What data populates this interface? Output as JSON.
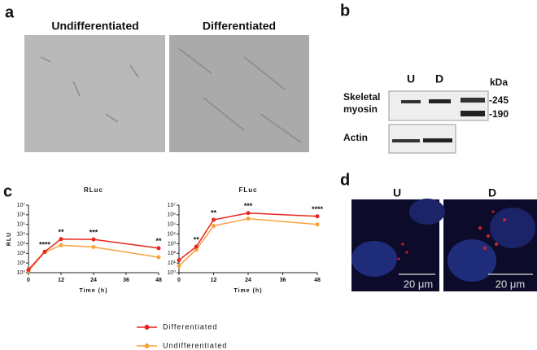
{
  "panel_labels": [
    "a",
    "b",
    "c",
    "d"
  ],
  "panel_a": {
    "titles": [
      "Undifferentiated",
      "Differentiated"
    ]
  },
  "panel_b": {
    "lanes": [
      "U",
      "D"
    ],
    "unit": "kDa",
    "markers": [
      "-245",
      "-190"
    ],
    "blot_labels": [
      [
        "Skeletal",
        "myosin"
      ],
      [
        "Actin"
      ]
    ]
  },
  "panel_d": {
    "labels": [
      "U",
      "D"
    ],
    "scale_bars": [
      "20 μm",
      "20 μm"
    ]
  },
  "legend": [
    {
      "name": "Differentiated",
      "color": "#e8251f"
    },
    {
      "name": "Undifferentiated",
      "color": "#f7a23c"
    }
  ],
  "chart_data": [
    {
      "type": "line",
      "title": "RLuc",
      "xlabel": "Time (h)",
      "ylabel": "RLU",
      "log": true,
      "x": [
        0,
        6,
        12,
        24,
        48
      ],
      "xlim": [
        0,
        48
      ],
      "xticks": [
        0,
        12,
        24,
        36,
        48
      ],
      "ylim": [
        1,
        10000000
      ],
      "yticks": [
        {
          "value": 1,
          "label": "10⁰"
        },
        {
          "value": 10,
          "label": "10¹"
        },
        {
          "value": 100,
          "label": "10²"
        },
        {
          "value": 1000,
          "label": "10³"
        },
        {
          "value": 10000,
          "label": "10⁴"
        },
        {
          "value": 100000,
          "label": "10⁵"
        },
        {
          "value": 1000000,
          "label": "10⁶"
        },
        {
          "value": 10000000,
          "label": "10⁷"
        }
      ],
      "series": [
        {
          "values": [
            2,
            150,
            3000,
            2800,
            350
          ]
        },
        {
          "values": [
            1.5,
            130,
            700,
            450,
            40
          ]
        }
      ],
      "annotations": [
        {
          "x": 6,
          "text": "****"
        },
        {
          "x": 12,
          "text": "**"
        },
        {
          "x": 24,
          "text": "***"
        },
        {
          "x": 48,
          "text": "**"
        }
      ]
    },
    {
      "type": "line",
      "title": "FLuc",
      "xlabel": "Time (h)",
      "log": true,
      "x": [
        0,
        6,
        12,
        24,
        48
      ],
      "xlim": [
        0,
        48
      ],
      "xticks": [
        0,
        12,
        24,
        36,
        48
      ],
      "ylim": [
        1,
        10000000
      ],
      "yticks": [
        {
          "value": 1,
          "label": "10⁰"
        },
        {
          "value": 10,
          "label": "10¹"
        },
        {
          "value": 100,
          "label": "10²"
        },
        {
          "value": 1000,
          "label": "10³"
        },
        {
          "value": 10000,
          "label": "10⁴"
        },
        {
          "value": 100000,
          "label": "10⁵"
        },
        {
          "value": 1000000,
          "label": "10⁶"
        },
        {
          "value": 10000000,
          "label": "10⁷"
        }
      ],
      "series": [
        {
          "values": [
            20,
            500,
            300000,
            1500000,
            700000
          ]
        },
        {
          "values": [
            5,
            250,
            70000,
            400000,
            100000
          ]
        }
      ],
      "annotations": [
        {
          "x": 6,
          "text": "**"
        },
        {
          "x": 12,
          "text": "**"
        },
        {
          "x": 24,
          "text": "***"
        },
        {
          "x": 48,
          "text": "****"
        }
      ]
    }
  ]
}
